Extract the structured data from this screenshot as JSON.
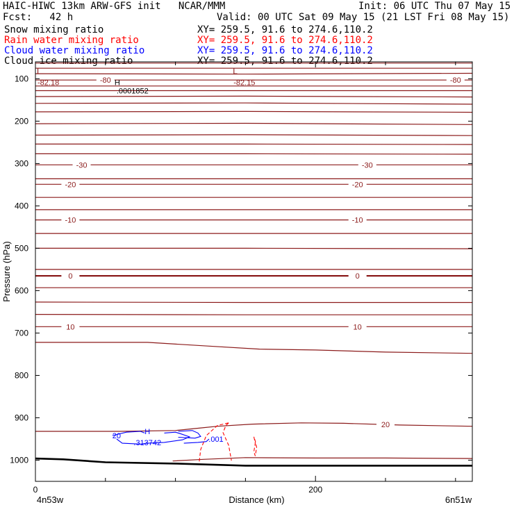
{
  "header": {
    "model_line": "HAIC-HIWC 13km ARW-GFS init   NCAR/MMM",
    "init_line": "Init: 06 UTC Thu 07 May 15",
    "fcst_line": "Fcst:   42 h",
    "valid_line": "Valid: 00 UTC Sat 09 May 15 (21 LST Fri 08 May 15)"
  },
  "fields": [
    {
      "name": "Snow mixing ratio",
      "xy": "XY= 259.5, 91.6 to 274.6,110.2",
      "color": "#000000"
    },
    {
      "name": "Rain water mixing ratio",
      "xy": "XY= 259.5, 91.6 to 274.6,110.2",
      "color": "#ff0000"
    },
    {
      "name": "Cloud water mixing ratio",
      "xy": "XY= 259.5, 91.6 to 274.6,110.2",
      "color": "#0000ff"
    },
    {
      "name": "Cloud ice mixing ratio",
      "xy": "XY= 259.5, 91.6 to 274.6,110.2",
      "color": "#000000"
    }
  ],
  "chart_data": {
    "type": "cross-section contour",
    "xlabel": "Distance (km)",
    "ylabel": "Pressure (hPa)",
    "xlim": [
      0,
      312
    ],
    "ylim": [
      1050,
      60
    ],
    "x_ticks": [
      0,
      200
    ],
    "x_minor_ticks": [
      50,
      100,
      150,
      250,
      300
    ],
    "y_ticks": [
      100,
      200,
      300,
      400,
      500,
      600,
      700,
      800,
      900,
      1000
    ],
    "x_endpoint_labels": {
      "left": "4n53w",
      "right": "6n51w"
    },
    "temperature_color": "#8b1a1a",
    "temperature_isotherms": [
      {
        "p": [
          63,
          63,
          63
        ],
        "x": [
          0,
          150,
          312
        ],
        "label": null
      },
      {
        "p": [
          75,
          75,
          75
        ],
        "x": [
          0,
          150,
          312
        ],
        "label": null
      },
      {
        "p": [
          88,
          89,
          87
        ],
        "x": [
          0,
          150,
          312
        ],
        "label": null
      },
      {
        "p": [
          103,
          103,
          103
        ],
        "x": [
          0,
          150,
          312
        ],
        "label": "-80",
        "label_at": [
          50,
          300
        ]
      },
      {
        "p": [
          117,
          117,
          117
        ],
        "x": [
          0,
          150,
          312
        ],
        "label": null
      },
      {
        "p": [
          128,
          128,
          128
        ],
        "x": [
          0,
          150,
          312
        ],
        "label": null
      },
      {
        "p": [
          142,
          141,
          143
        ],
        "x": [
          0,
          150,
          312
        ],
        "label": null
      },
      {
        "p": [
          158,
          157,
          160
        ],
        "x": [
          0,
          150,
          312
        ],
        "label": null
      },
      {
        "p": [
          178,
          177,
          179
        ],
        "x": [
          0,
          150,
          312
        ],
        "label": null
      },
      {
        "p": [
          206,
          205,
          208
        ],
        "x": [
          0,
          150,
          312
        ],
        "label": null
      },
      {
        "p": [
          233,
          232,
          234
        ],
        "x": [
          0,
          150,
          312
        ],
        "label": null
      },
      {
        "p": [
          254,
          254,
          255
        ],
        "x": [
          0,
          150,
          312
        ],
        "label": null
      },
      {
        "p": [
          277,
          277,
          278
        ],
        "x": [
          0,
          150,
          312
        ],
        "label": null
      },
      {
        "p": [
          303,
          303,
          303
        ],
        "x": [
          0,
          150,
          312
        ],
        "label": "-30",
        "label_at": [
          33,
          237
        ]
      },
      {
        "p": [
          336,
          336,
          336
        ],
        "x": [
          0,
          150,
          312
        ],
        "label": null
      },
      {
        "p": [
          349,
          349,
          349
        ],
        "x": [
          0,
          150,
          312
        ],
        "label": "-20",
        "label_at": [
          25,
          230
        ]
      },
      {
        "p": [
          380,
          380,
          380
        ],
        "x": [
          0,
          150,
          312
        ],
        "label": null
      },
      {
        "p": [
          409,
          409,
          409
        ],
        "x": [
          0,
          150,
          312
        ],
        "label": null
      },
      {
        "p": [
          433,
          433,
          433
        ],
        "x": [
          0,
          150,
          312
        ],
        "label": "-10",
        "label_at": [
          25,
          230
        ]
      },
      {
        "p": [
          465,
          465,
          465
        ],
        "x": [
          0,
          150,
          312
        ],
        "label": null
      },
      {
        "p": [
          500,
          500,
          501
        ],
        "x": [
          0,
          150,
          312
        ],
        "label": null
      },
      {
        "p": [
          550,
          550,
          550
        ],
        "x": [
          0,
          150,
          312
        ],
        "label": null
      },
      {
        "p": [
          565,
          565,
          565
        ],
        "x": [
          0,
          150,
          312
        ],
        "label": "0",
        "label_at": [
          25,
          230
        ],
        "bold": true
      },
      {
        "p": [
          593,
          593,
          593
        ],
        "x": [
          0,
          150,
          312
        ],
        "label": null
      },
      {
        "p": [
          627,
          628,
          628
        ],
        "x": [
          0,
          150,
          312
        ],
        "label": null
      },
      {
        "p": [
          656,
          657,
          657
        ],
        "x": [
          0,
          150,
          312
        ],
        "label": null
      },
      {
        "p": [
          685,
          685,
          685
        ],
        "x": [
          0,
          150,
          312
        ],
        "label": "10",
        "label_at": [
          25,
          230
        ]
      },
      {
        "p": [
          722,
          722,
          730,
          738,
          740,
          745,
          748
        ],
        "x": [
          0,
          80,
          120,
          160,
          200,
          250,
          312
        ],
        "label": null
      },
      {
        "p": [
          932,
          932,
          930,
          924,
          920,
          915,
          912,
          913,
          917,
          920
        ],
        "x": [
          0,
          60,
          100,
          118,
          130,
          155,
          190,
          220,
          260,
          312
        ],
        "label": "20",
        "label_at": [
          250
        ]
      },
      {
        "p": [
          1002,
          998,
          994,
          995,
          995,
          996
        ],
        "x": [
          98,
          120,
          150,
          200,
          250,
          312
        ],
        "label": null
      }
    ],
    "terrain_surface": {
      "x": [
        0,
        20,
        50,
        100,
        130,
        150,
        200,
        250,
        312
      ],
      "p": [
        996,
        998,
        1005,
        1008,
        1011,
        1013,
        1013,
        1013,
        1013
      ]
    },
    "temperature_extrema": [
      {
        "kind": "L",
        "x": 0,
        "p": 85,
        "value": "-82.18"
      },
      {
        "kind": "L",
        "x": 140,
        "p": 85,
        "value": "-82.15"
      },
      {
        "kind": "H",
        "x": 55,
        "p": 108,
        "value": ".0001852"
      }
    ],
    "cloud_water_contours": [
      {
        "points": [
          [
            55,
            942
          ],
          [
            65,
            934
          ],
          [
            75,
            932
          ],
          [
            78,
            936
          ]
        ],
        "label": "20"
      },
      {
        "points": [
          [
            58,
            950
          ],
          [
            62,
            960
          ],
          [
            75,
            962
          ],
          [
            80,
            960
          ],
          [
            92,
            958
          ],
          [
            105,
            952
          ],
          [
            110,
            945
          ],
          [
            104,
            938
          ],
          [
            100,
            934
          ],
          [
            92,
            936
          ]
        ],
        "label": null
      },
      {
        "points": [
          [
            102,
            932
          ],
          [
            112,
            930
          ],
          [
            116,
            936
          ],
          [
            118,
            944
          ],
          [
            114,
            948
          ],
          [
            102,
            946
          ]
        ],
        "label": null
      },
      {
        "points": [
          [
            106,
            960
          ],
          [
            116,
            958
          ],
          [
            122,
            956
          ],
          [
            124,
            950
          ]
        ],
        "label": ".001"
      }
    ],
    "cloud_water_extrema": [
      {
        "kind": "H",
        "x": 80,
        "p": 942,
        "value": ".313742"
      }
    ],
    "rain_contours": [
      {
        "points": [
          [
            117,
            1003
          ],
          [
            118,
            975
          ],
          [
            122,
            942
          ],
          [
            130,
            918
          ],
          [
            138,
            912
          ]
        ],
        "dashed": true
      },
      {
        "points": [
          [
            138,
            912
          ],
          [
            136,
            918
          ],
          [
            134,
            935
          ],
          [
            138,
            965
          ],
          [
            140,
            1001
          ]
        ],
        "dashed": true
      },
      {
        "points": [
          [
            156,
            945
          ],
          [
            157,
            960
          ],
          [
            156,
            980
          ],
          [
            157,
            990
          ],
          [
            158,
            970
          ],
          [
            157,
            955
          ],
          [
            156,
            945
          ]
        ],
        "dashed": true
      }
    ]
  }
}
